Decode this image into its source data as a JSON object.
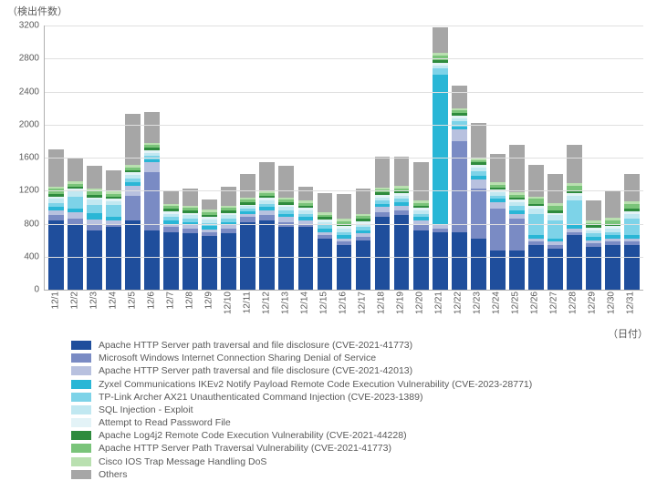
{
  "chart": {
    "type": "stacked-bar",
    "y_title": "（検出件数）",
    "x_title": "（日付）",
    "y": {
      "min": 0,
      "max": 3200,
      "step": 400
    },
    "background_color": "#ffffff",
    "grid_color": "#e0e0e0",
    "axis_color": "#b0b0b0",
    "text_color": "#595959",
    "tick_fontsize": 10,
    "title_fontsize": 11,
    "legend_fontsize": 10.5,
    "bar_width_ratio": 0.8,
    "series": [
      {
        "key": "s0",
        "label": "Apache HTTP Server path traversal and file disclosure (CVE-2021-41773)",
        "color": "#1f4e9c"
      },
      {
        "key": "s1",
        "label": "Microsoft Windows Internet Connection Sharing Denial of Service",
        "color": "#7a8bc4"
      },
      {
        "key": "s2",
        "label": "Apache HTTP Server path traversal and file disclosure (CVE-2021-42013)",
        "color": "#b8c1df"
      },
      {
        "key": "s3",
        "label": "Zyxel Communications IKEv2 Notify Payload Remote Code Execution Vulnerability (CVE-2023-28771)",
        "color": "#29b6d6"
      },
      {
        "key": "s4",
        "label": "TP-Link Archer AX21 Unauthenticated Command Injection (CVE-2023-1389)",
        "color": "#7dd3e8"
      },
      {
        "key": "s5",
        "label": "SQL Injection - Exploit",
        "color": "#c1e8f1"
      },
      {
        "key": "s6",
        "label": "Attempt to Read Password File",
        "color": "#e3f3f7"
      },
      {
        "key": "s7",
        "label": "Apache Log4j2 Remote Code Execution Vulnerability (CVE-2021-44228)",
        "color": "#2e8b3d"
      },
      {
        "key": "s8",
        "label": "Apache HTTP Server Path Traversal Vulnerability (CVE-2021-41773)",
        "color": "#7ac47a"
      },
      {
        "key": "s9",
        "label": "Cisco IOS Trap Message Handling DoS",
        "color": "#b9e0b0"
      },
      {
        "key": "s10",
        "label": "Others",
        "color": "#a6a6a6"
      }
    ],
    "categories": [
      "12/1",
      "12/2",
      "12/3",
      "12/4",
      "12/5",
      "12/6",
      "12/7",
      "12/8",
      "12/9",
      "12/10",
      "12/11",
      "12/12",
      "12/13",
      "12/14",
      "12/15",
      "12/16",
      "12/17",
      "12/18",
      "12/19",
      "12/20",
      "12/21",
      "12/22",
      "12/23",
      "12/24",
      "12/25",
      "12/26",
      "12/27",
      "12/28",
      "12/29",
      "12/30",
      "12/31"
    ],
    "data": [
      {
        "s0": 840,
        "s1": 60,
        "s2": 60,
        "s3": 40,
        "s4": 50,
        "s5": 50,
        "s6": 30,
        "s7": 30,
        "s8": 60,
        "s9": 30,
        "s10": 450
      },
      {
        "s0": 800,
        "s1": 60,
        "s2": 80,
        "s3": 40,
        "s4": 150,
        "s5": 60,
        "s6": 30,
        "s7": 30,
        "s8": 30,
        "s9": 30,
        "s10": 290
      },
      {
        "s0": 720,
        "s1": 60,
        "s2": 70,
        "s3": 80,
        "s4": 100,
        "s5": 60,
        "s6": 30,
        "s7": 30,
        "s8": 40,
        "s9": 30,
        "s10": 280
      },
      {
        "s0": 760,
        "s1": 40,
        "s2": 40,
        "s3": 40,
        "s4": 150,
        "s5": 40,
        "s6": 30,
        "s7": 30,
        "s8": 30,
        "s9": 30,
        "s10": 260
      },
      {
        "s0": 840,
        "s1": 300,
        "s2": 120,
        "s3": 40,
        "s4": 50,
        "s5": 40,
        "s6": 30,
        "s7": 30,
        "s8": 30,
        "s9": 30,
        "s10": 620
      },
      {
        "s0": 720,
        "s1": 700,
        "s2": 120,
        "s3": 40,
        "s4": 40,
        "s5": 40,
        "s6": 30,
        "s7": 30,
        "s8": 30,
        "s9": 30,
        "s10": 370
      },
      {
        "s0": 700,
        "s1": 60,
        "s2": 40,
        "s3": 40,
        "s4": 40,
        "s5": 40,
        "s6": 30,
        "s7": 30,
        "s8": 30,
        "s9": 30,
        "s10": 150
      },
      {
        "s0": 680,
        "s1": 60,
        "s2": 40,
        "s3": 40,
        "s4": 40,
        "s5": 40,
        "s6": 30,
        "s7": 30,
        "s8": 30,
        "s9": 30,
        "s10": 200
      },
      {
        "s0": 650,
        "s1": 40,
        "s2": 40,
        "s3": 40,
        "s4": 40,
        "s5": 40,
        "s6": 30,
        "s7": 30,
        "s8": 30,
        "s9": 30,
        "s10": 120
      },
      {
        "s0": 680,
        "s1": 60,
        "s2": 40,
        "s3": 40,
        "s4": 40,
        "s5": 40,
        "s6": 30,
        "s7": 30,
        "s8": 30,
        "s9": 30,
        "s10": 230
      },
      {
        "s0": 820,
        "s1": 60,
        "s2": 40,
        "s3": 30,
        "s4": 30,
        "s5": 30,
        "s6": 20,
        "s7": 30,
        "s8": 30,
        "s9": 20,
        "s10": 290
      },
      {
        "s0": 840,
        "s1": 60,
        "s2": 60,
        "s3": 40,
        "s4": 40,
        "s5": 40,
        "s6": 30,
        "s7": 30,
        "s8": 30,
        "s9": 30,
        "s10": 350
      },
      {
        "s0": 760,
        "s1": 60,
        "s2": 60,
        "s3": 40,
        "s4": 40,
        "s5": 40,
        "s6": 30,
        "s7": 30,
        "s8": 30,
        "s9": 30,
        "s10": 380
      },
      {
        "s0": 760,
        "s1": 40,
        "s2": 40,
        "s3": 40,
        "s4": 40,
        "s5": 40,
        "s6": 30,
        "s7": 30,
        "s8": 30,
        "s9": 30,
        "s10": 170
      },
      {
        "s0": 620,
        "s1": 40,
        "s2": 40,
        "s3": 40,
        "s4": 40,
        "s5": 40,
        "s6": 30,
        "s7": 30,
        "s8": 30,
        "s9": 30,
        "s10": 230
      },
      {
        "s0": 540,
        "s1": 40,
        "s2": 40,
        "s3": 40,
        "s4": 40,
        "s5": 40,
        "s6": 30,
        "s7": 30,
        "s8": 30,
        "s9": 30,
        "s10": 300
      },
      {
        "s0": 600,
        "s1": 40,
        "s2": 40,
        "s3": 40,
        "s4": 40,
        "s5": 40,
        "s6": 30,
        "s7": 30,
        "s8": 30,
        "s9": 30,
        "s10": 300
      },
      {
        "s0": 880,
        "s1": 60,
        "s2": 60,
        "s3": 40,
        "s4": 40,
        "s5": 40,
        "s6": 30,
        "s7": 30,
        "s8": 30,
        "s9": 30,
        "s10": 370
      },
      {
        "s0": 900,
        "s1": 60,
        "s2": 60,
        "s3": 40,
        "s4": 40,
        "s5": 40,
        "s6": 30,
        "s7": 30,
        "s8": 30,
        "s9": 30,
        "s10": 350
      },
      {
        "s0": 720,
        "s1": 60,
        "s2": 60,
        "s3": 40,
        "s4": 40,
        "s5": 40,
        "s6": 30,
        "s7": 30,
        "s8": 30,
        "s9": 30,
        "s10": 470
      },
      {
        "s0": 700,
        "s1": 40,
        "s2": 60,
        "s3": 1800,
        "s4": 80,
        "s5": 40,
        "s6": 30,
        "s7": 30,
        "s8": 60,
        "s9": 30,
        "s10": 310
      },
      {
        "s0": 700,
        "s1": 1100,
        "s2": 140,
        "s3": 40,
        "s4": 60,
        "s5": 40,
        "s6": 30,
        "s7": 30,
        "s8": 30,
        "s9": 30,
        "s10": 270
      },
      {
        "s0": 620,
        "s1": 600,
        "s2": 120,
        "s3": 40,
        "s4": 60,
        "s5": 40,
        "s6": 30,
        "s7": 30,
        "s8": 30,
        "s9": 30,
        "s10": 420
      },
      {
        "s0": 480,
        "s1": 500,
        "s2": 80,
        "s3": 40,
        "s4": 40,
        "s5": 40,
        "s6": 30,
        "s7": 30,
        "s8": 30,
        "s9": 30,
        "s10": 340
      },
      {
        "s0": 480,
        "s1": 380,
        "s2": 60,
        "s3": 40,
        "s4": 60,
        "s5": 40,
        "s6": 30,
        "s7": 30,
        "s8": 30,
        "s9": 30,
        "s10": 580
      },
      {
        "s0": 540,
        "s1": 40,
        "s2": 40,
        "s3": 40,
        "s4": 260,
        "s5": 60,
        "s6": 30,
        "s7": 30,
        "s8": 60,
        "s9": 30,
        "s10": 380
      },
      {
        "s0": 500,
        "s1": 40,
        "s2": 40,
        "s3": 40,
        "s4": 220,
        "s5": 60,
        "s6": 30,
        "s7": 30,
        "s8": 60,
        "s9": 30,
        "s10": 350
      },
      {
        "s0": 660,
        "s1": 40,
        "s2": 40,
        "s3": 40,
        "s4": 300,
        "s5": 60,
        "s6": 30,
        "s7": 30,
        "s8": 60,
        "s9": 30,
        "s10": 460
      },
      {
        "s0": 520,
        "s1": 40,
        "s2": 40,
        "s3": 40,
        "s4": 40,
        "s5": 40,
        "s6": 30,
        "s7": 30,
        "s8": 30,
        "s9": 30,
        "s10": 240
      },
      {
        "s0": 540,
        "s1": 40,
        "s2": 40,
        "s3": 40,
        "s4": 40,
        "s5": 40,
        "s6": 30,
        "s7": 30,
        "s8": 40,
        "s9": 30,
        "s10": 330
      },
      {
        "s0": 540,
        "s1": 40,
        "s2": 40,
        "s3": 40,
        "s4": 200,
        "s5": 60,
        "s6": 30,
        "s7": 30,
        "s8": 60,
        "s9": 30,
        "s10": 330
      }
    ]
  }
}
